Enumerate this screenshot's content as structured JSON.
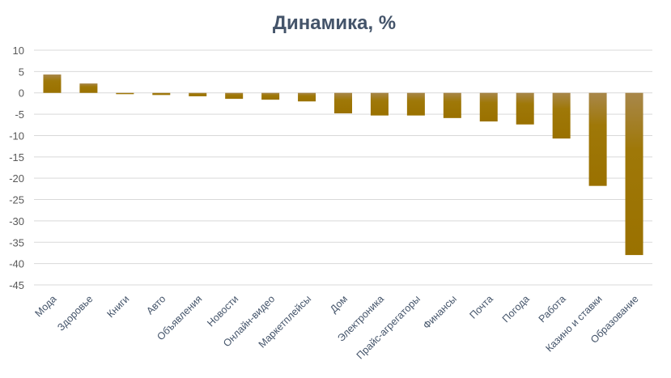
{
  "chart_data": {
    "type": "bar",
    "title": "Динамика, %",
    "xlabel": "",
    "ylabel": "",
    "ylim": [
      -45,
      10
    ],
    "y_ticks": [
      10,
      5,
      0,
      -5,
      -10,
      -15,
      -20,
      -25,
      -30,
      -35,
      -40,
      -45
    ],
    "grid": true,
    "legend": "none",
    "bar_color_top": "#a8874a",
    "bar_color_bottom": "#9a7100",
    "categories": [
      "Мода",
      "Здоровье",
      "Книги",
      "Авто",
      "Объявления",
      "Новости",
      "Онлайн-видео",
      "Маркетплейсы",
      "Дом",
      "Электроника",
      "Прайс-агрегаторы",
      "Финансы",
      "Почта",
      "Погода",
      "Работа",
      "Казино и ставки",
      "Образование"
    ],
    "values": [
      4.3,
      2.2,
      -0.3,
      -0.5,
      -0.8,
      -1.4,
      -1.6,
      -2.0,
      -4.8,
      -5.3,
      -5.3,
      -5.9,
      -6.7,
      -7.4,
      -10.7,
      -21.8,
      -38.0
    ]
  }
}
